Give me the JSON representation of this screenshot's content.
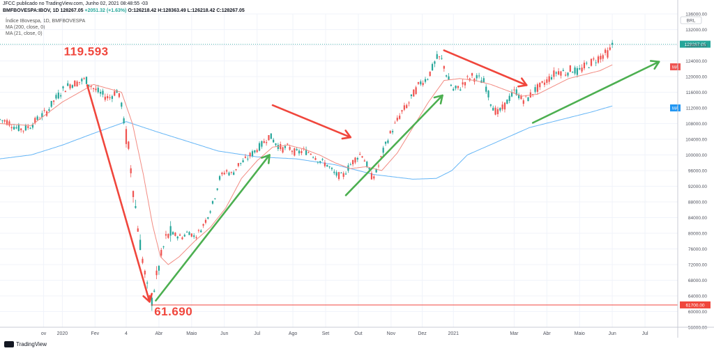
{
  "header": {
    "published": "JFCC publicado no TradingView.com, Junho 02, 2021 08:48:55 -03",
    "symbol": "BMFBOVESPA:IBOV, 1D",
    "last": "128267.05",
    "change": "+2051.32 (+1.63%)",
    "o": "126218.42",
    "h": "128363.49",
    "l": "126218.42",
    "c": "128267.05"
  },
  "legend": {
    "title": "Índice IBovespa, 1D, BMFBOVESPA",
    "ma200": "MA (200, close, 0)",
    "ma21": "MA (21, close, 0)"
  },
  "footer": {
    "brand": "TradingView"
  },
  "colors": {
    "up": "#26a69a",
    "down": "#ef5350",
    "ma21": "#f28b82",
    "ma200": "#64b5f6",
    "arrow_red": "#f0463c",
    "arrow_green": "#4caf50",
    "label_red": "#f0463c"
  },
  "chart_data": {
    "type": "candlestick",
    "currency": "BRL",
    "ylim": [
      56000,
      136000
    ],
    "y_ticks": [
      56000,
      60000,
      64000,
      68000,
      72000,
      76000,
      80000,
      84000,
      88000,
      92000,
      96000,
      100000,
      104000,
      108000,
      112000,
      116000,
      120000,
      124000,
      128000,
      132000,
      136000
    ],
    "y_tick_labels": [
      "56000.00",
      "60000.00",
      "64000.00",
      "68000.00",
      "72000.00",
      "76000.00",
      "80000.00",
      "84000.00",
      "88000.00",
      "92000.00",
      "96000.00",
      "100000.00",
      "104000.00",
      "108000.00",
      "112000.00",
      "116000.00",
      "120000.00",
      "124000.00",
      "128000.00",
      "132000.00",
      "136000.00"
    ],
    "x_ticks": [
      {
        "label": "ov",
        "t": -12
      },
      {
        "label": "2020",
        "t": 0
      },
      {
        "label": "Fev",
        "t": 21
      },
      {
        "label": "4",
        "t": 41
      },
      {
        "label": "Abr",
        "t": 62
      },
      {
        "label": "Maio",
        "t": 83
      },
      {
        "label": "Jun",
        "t": 104
      },
      {
        "label": "Jul",
        "t": 125
      },
      {
        "label": "Ago",
        "t": 148
      },
      {
        "label": "Set",
        "t": 169
      },
      {
        "label": "Out",
        "t": 190
      },
      {
        "label": "Nov",
        "t": 211
      },
      {
        "label": "Dez",
        "t": 231
      },
      {
        "label": "2021",
        "t": 251
      },
      {
        "label": "Mar",
        "t": 290
      },
      {
        "label": "Abr",
        "t": 311
      },
      {
        "label": "Maio",
        "t": 332
      },
      {
        "label": "Jun",
        "t": 353
      },
      {
        "label": "Jul",
        "t": 374
      }
    ],
    "t_range": [
      -40,
      395
    ],
    "price_path": [
      [
        -40,
        109000
      ],
      [
        -35,
        108500
      ],
      [
        -30,
        107000
      ],
      [
        -25,
        106500
      ],
      [
        -20,
        107500
      ],
      [
        -15,
        109500
      ],
      [
        -10,
        111000
      ],
      [
        -5,
        114000
      ],
      [
        0,
        116500
      ],
      [
        5,
        118000
      ],
      [
        10,
        118500
      ],
      [
        15,
        119300
      ],
      [
        20,
        117000
      ],
      [
        25,
        115500
      ],
      [
        30,
        114500
      ],
      [
        35,
        116500
      ],
      [
        38,
        113000
      ],
      [
        40,
        107000
      ],
      [
        43,
        100000
      ],
      [
        46,
        90000
      ],
      [
        49,
        80000
      ],
      [
        52,
        72000
      ],
      [
        55,
        64500
      ],
      [
        57,
        61690
      ],
      [
        60,
        68000
      ],
      [
        63,
        73000
      ],
      [
        66,
        78000
      ],
      [
        69,
        80000
      ],
      [
        73,
        79500
      ],
      [
        77,
        79000
      ],
      [
        81,
        80500
      ],
      [
        85,
        79000
      ],
      [
        89,
        81000
      ],
      [
        93,
        84000
      ],
      [
        97,
        88000
      ],
      [
        101,
        94000
      ],
      [
        105,
        96000
      ],
      [
        109,
        95000
      ],
      [
        113,
        97500
      ],
      [
        117,
        98500
      ],
      [
        121,
        100000
      ],
      [
        125,
        101500
      ],
      [
        129,
        103000
      ],
      [
        133,
        105000
      ],
      [
        137,
        103000
      ],
      [
        141,
        101500
      ],
      [
        145,
        102000
      ],
      [
        150,
        100500
      ],
      [
        155,
        101000
      ],
      [
        160,
        100500
      ],
      [
        165,
        98500
      ],
      [
        170,
        97500
      ],
      [
        175,
        95000
      ],
      [
        180,
        94500
      ],
      [
        184,
        97000
      ],
      [
        188,
        99000
      ],
      [
        192,
        100500
      ],
      [
        196,
        97000
      ],
      [
        199,
        94000
      ],
      [
        202,
        96000
      ],
      [
        206,
        101000
      ],
      [
        210,
        105000
      ],
      [
        214,
        108000
      ],
      [
        218,
        111000
      ],
      [
        222,
        113000
      ],
      [
        226,
        116000
      ],
      [
        230,
        118500
      ],
      [
        234,
        119500
      ],
      [
        238,
        122500
      ],
      [
        241,
        125000
      ],
      [
        244,
        124000
      ],
      [
        247,
        120000
      ],
      [
        251,
        116500
      ],
      [
        255,
        117000
      ],
      [
        259,
        119000
      ],
      [
        263,
        120000
      ],
      [
        267,
        119500
      ],
      [
        271,
        118500
      ],
      [
        275,
        113500
      ],
      [
        279,
        110500
      ],
      [
        283,
        112000
      ],
      [
        287,
        114500
      ],
      [
        291,
        116500
      ],
      [
        295,
        114000
      ],
      [
        299,
        114500
      ],
      [
        303,
        116500
      ],
      [
        307,
        117500
      ],
      [
        311,
        119000
      ],
      [
        315,
        120500
      ],
      [
        319,
        121500
      ],
      [
        323,
        121000
      ],
      [
        327,
        122000
      ],
      [
        331,
        121000
      ],
      [
        335,
        122500
      ],
      [
        339,
        123500
      ],
      [
        343,
        124500
      ],
      [
        347,
        125500
      ],
      [
        351,
        126200
      ],
      [
        353,
        128267
      ]
    ],
    "ma200_path": [
      [
        -40,
        99000
      ],
      [
        -20,
        100000
      ],
      [
        0,
        102500
      ],
      [
        20,
        105500
      ],
      [
        41,
        108500
      ],
      [
        60,
        106000
      ],
      [
        80,
        103500
      ],
      [
        100,
        101000
      ],
      [
        125,
        99500
      ],
      [
        150,
        99000
      ],
      [
        175,
        97500
      ],
      [
        200,
        95000
      ],
      [
        225,
        93800
      ],
      [
        240,
        94000
      ],
      [
        250,
        96000
      ],
      [
        260,
        100000
      ],
      [
        280,
        103500
      ],
      [
        300,
        107000
      ],
      [
        320,
        109000
      ],
      [
        340,
        111000
      ],
      [
        353,
        112500
      ]
    ],
    "ma21_path": [
      [
        -40,
        108000
      ],
      [
        -20,
        107500
      ],
      [
        0,
        113500
      ],
      [
        20,
        118000
      ],
      [
        38,
        116000
      ],
      [
        45,
        108000
      ],
      [
        52,
        95000
      ],
      [
        58,
        82000
      ],
      [
        63,
        74000
      ],
      [
        68,
        72000
      ],
      [
        75,
        74000
      ],
      [
        85,
        78000
      ],
      [
        95,
        81500
      ],
      [
        105,
        86500
      ],
      [
        115,
        94000
      ],
      [
        125,
        98500
      ],
      [
        135,
        102000
      ],
      [
        145,
        102500
      ],
      [
        155,
        101500
      ],
      [
        165,
        100000
      ],
      [
        175,
        98000
      ],
      [
        185,
        96500
      ],
      [
        195,
        97000
      ],
      [
        205,
        96000
      ],
      [
        215,
        100500
      ],
      [
        225,
        107000
      ],
      [
        235,
        113500
      ],
      [
        245,
        119000
      ],
      [
        255,
        119500
      ],
      [
        265,
        119000
      ],
      [
        275,
        118000
      ],
      [
        285,
        116500
      ],
      [
        295,
        115000
      ],
      [
        305,
        115500
      ],
      [
        315,
        117500
      ],
      [
        325,
        119500
      ],
      [
        335,
        120500
      ],
      [
        345,
        121500
      ],
      [
        353,
        123000
      ]
    ],
    "current_price": {
      "value": 128267.05,
      "label": "128267.05"
    },
    "low_line": {
      "value": 61700,
      "label": "61700.00"
    },
    "ma_tags": [
      {
        "label": "MA",
        "value": 122500,
        "color": "#ef5350"
      },
      {
        "label": "MA",
        "value": 112000,
        "color": "#2196f3"
      }
    ],
    "annotations": [
      {
        "text": "119.593",
        "t": 1,
        "y": 125400,
        "color": "#f0463c"
      },
      {
        "text": "61.690",
        "t": 59,
        "y": 59000,
        "color": "#f0463c"
      }
    ],
    "arrows": [
      {
        "color": "red",
        "from": [
          16,
          117800
        ],
        "to": [
          56,
          62500
        ]
      },
      {
        "color": "green",
        "from": [
          60,
          62800
        ],
        "to": [
          133,
          100000
        ]
      },
      {
        "color": "red",
        "from": [
          135,
          112700
        ],
        "to": [
          185,
          104500
        ]
      },
      {
        "color": "green",
        "from": [
          182,
          89700
        ],
        "to": [
          244,
          115200
        ]
      },
      {
        "color": "red",
        "from": [
          245,
          126700
        ],
        "to": [
          298,
          117800
        ]
      },
      {
        "color": "green",
        "from": [
          302,
          108200
        ],
        "to": [
          383,
          123800
        ]
      }
    ]
  }
}
